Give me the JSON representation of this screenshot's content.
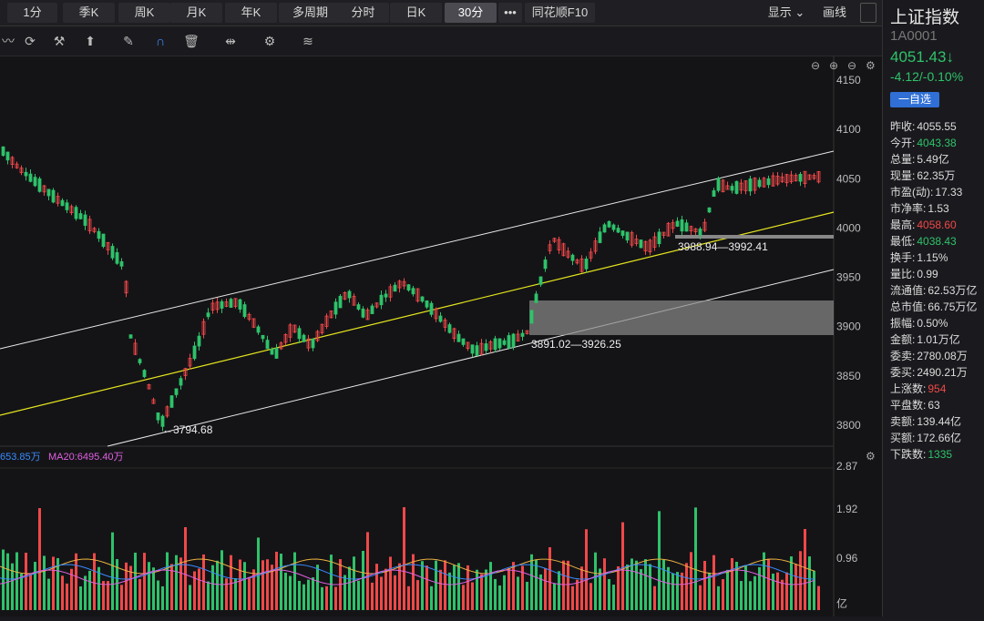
{
  "tabs": [
    {
      "label": "1分",
      "active": false
    },
    {
      "label": "季K",
      "active": false
    },
    {
      "label": "周K",
      "active": false
    },
    {
      "label": "月K",
      "active": false
    },
    {
      "label": "年K",
      "active": false
    },
    {
      "label": "多周期",
      "active": false
    },
    {
      "label": "分时",
      "active": false
    },
    {
      "label": "日K",
      "active": false
    },
    {
      "label": "30分",
      "active": true
    },
    {
      "label": "•••",
      "active": false
    },
    {
      "label": "同花顺F10",
      "active": false
    }
  ],
  "right_tabs": {
    "display": "显示 ⌄",
    "draw": "画线"
  },
  "stock": {
    "name": "上证指数",
    "code": "1A0001",
    "price": "4051.43↓",
    "change": "-4.12/-0.10%",
    "watch_button": "一自选"
  },
  "quote": [
    {
      "k": "昨收:",
      "v": "4055.55",
      "c": "white"
    },
    {
      "k": "今开:",
      "v": "4043.38",
      "c": "green"
    },
    {
      "k": "总量:",
      "v": "5.49亿",
      "c": "white"
    },
    {
      "k": "现量:",
      "v": "62.35万",
      "c": "white"
    },
    {
      "k": "市盈(动):",
      "v": "17.33",
      "c": "white"
    },
    {
      "k": "市净率:",
      "v": "1.53",
      "c": "white"
    },
    {
      "k": "最高:",
      "v": "4058.60",
      "c": "red"
    },
    {
      "k": "最低:",
      "v": "4038.43",
      "c": "green"
    },
    {
      "k": "换手:",
      "v": "1.15%",
      "c": "white"
    },
    {
      "k": "量比:",
      "v": "0.99",
      "c": "white"
    },
    {
      "k": "流通值:",
      "v": "62.53万亿",
      "c": "white"
    },
    {
      "k": "总市值:",
      "v": "66.75万亿",
      "c": "white"
    },
    {
      "k": "振幅:",
      "v": "0.50%",
      "c": "white"
    },
    {
      "k": "金额:",
      "v": "1.01万亿",
      "c": "white"
    },
    {
      "k": "委卖:",
      "v": "2780.08万",
      "c": "white"
    },
    {
      "k": "委买:",
      "v": "2490.21万",
      "c": "white"
    },
    {
      "k": "上涨数:",
      "v": "954",
      "c": "red"
    },
    {
      "k": "平盘数:",
      "v": "63",
      "c": "white"
    },
    {
      "k": "卖额:",
      "v": "139.44亿",
      "c": "white"
    },
    {
      "k": "买额:",
      "v": "172.66亿",
      "c": "white"
    },
    {
      "k": "下跌数:",
      "v": "1335",
      "c": "green"
    }
  ],
  "price_axis": [
    "4150",
    "4100",
    "4050",
    "4000",
    "3950",
    "3900",
    "3850",
    "3800"
  ],
  "vol_axis": [
    "2.87",
    "1.92",
    "0.96",
    "亿"
  ],
  "annotations": {
    "low": "←3794.68",
    "zone1": "3891.02—3926.25",
    "zone2": "3988.94—3992.41"
  },
  "ma_legend": {
    "ma1": "653.85万",
    "ma20": "MA20:6495.40万"
  },
  "colors": {
    "up": "#f04848",
    "down": "#2fc26a",
    "channel": "#e8e8e8",
    "mid": "#e6e61e"
  }
}
